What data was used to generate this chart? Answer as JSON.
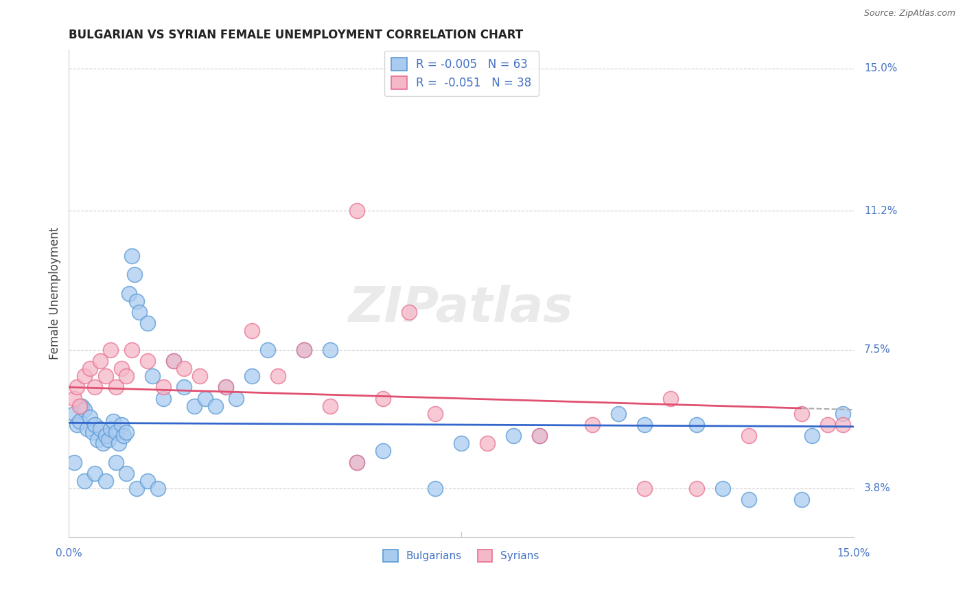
{
  "title": "BULGARIAN VS SYRIAN FEMALE UNEMPLOYMENT CORRELATION CHART",
  "source": "Source: ZipAtlas.com",
  "ylabel": "Female Unemployment",
  "yticks": [
    3.8,
    7.5,
    11.2,
    15.0
  ],
  "ytick_labels": [
    "3.8%",
    "7.5%",
    "11.2%",
    "15.0%"
  ],
  "xlim": [
    0,
    15
  ],
  "ylim": [
    2.5,
    15.5
  ],
  "watermark_text": "ZIPatlas",
  "legend_blue_r": "-0.005",
  "legend_blue_n": "63",
  "legend_pink_r": "-0.051",
  "legend_pink_n": "38",
  "blue_fill": "#AACBF0",
  "pink_fill": "#F5B8C8",
  "blue_edge": "#5A9AD5",
  "pink_edge": "#E87090",
  "blue_line": "#3366CC",
  "pink_line": "#E05070",
  "dashed_line": "#AAAAAA",
  "title_color": "#222222",
  "axis_label_color": "#4472C4",
  "grid_color": "#CCCCCC",
  "bulgarians_x": [
    0.1,
    0.15,
    0.2,
    0.25,
    0.3,
    0.35,
    0.4,
    0.45,
    0.5,
    0.55,
    0.6,
    0.65,
    0.7,
    0.75,
    0.8,
    0.85,
    0.9,
    0.95,
    1.0,
    1.05,
    1.1,
    1.15,
    1.2,
    1.25,
    1.3,
    1.35,
    1.5,
    1.6,
    1.8,
    2.0,
    2.2,
    2.4,
    2.6,
    2.8,
    3.0,
    3.2,
    3.5,
    3.8,
    4.5,
    5.0,
    5.5,
    6.0,
    7.0,
    7.5,
    8.5,
    9.0,
    10.5,
    11.0,
    12.0,
    12.5,
    13.0,
    14.0,
    14.2,
    14.8,
    0.1,
    0.3,
    0.5,
    0.7,
    0.9,
    1.1,
    1.3,
    1.5,
    1.7
  ],
  "bulgarians_y": [
    5.8,
    5.5,
    5.6,
    6.0,
    5.9,
    5.4,
    5.7,
    5.3,
    5.5,
    5.1,
    5.4,
    5.0,
    5.2,
    5.1,
    5.4,
    5.6,
    5.3,
    5.0,
    5.5,
    5.2,
    5.3,
    9.0,
    10.0,
    9.5,
    8.8,
    8.5,
    8.2,
    6.8,
    6.2,
    7.2,
    6.5,
    6.0,
    6.2,
    6.0,
    6.5,
    6.2,
    6.8,
    7.5,
    7.5,
    7.5,
    4.5,
    4.8,
    3.8,
    5.0,
    5.2,
    5.2,
    5.8,
    5.5,
    5.5,
    3.8,
    3.5,
    3.5,
    5.2,
    5.8,
    4.5,
    4.0,
    4.2,
    4.0,
    4.5,
    4.2,
    3.8,
    4.0,
    3.8
  ],
  "syrians_x": [
    0.1,
    0.15,
    0.2,
    0.3,
    0.4,
    0.5,
    0.6,
    0.7,
    0.8,
    0.9,
    1.0,
    1.1,
    1.2,
    1.5,
    1.8,
    2.0,
    2.2,
    2.5,
    3.0,
    3.5,
    4.0,
    4.5,
    5.0,
    5.5,
    6.0,
    7.0,
    8.0,
    9.0,
    10.0,
    11.0,
    12.0,
    13.0,
    14.0,
    14.5,
    14.8,
    5.5,
    6.5,
    11.5
  ],
  "syrians_y": [
    6.2,
    6.5,
    6.0,
    6.8,
    7.0,
    6.5,
    7.2,
    6.8,
    7.5,
    6.5,
    7.0,
    6.8,
    7.5,
    7.2,
    6.5,
    7.2,
    7.0,
    6.8,
    6.5,
    8.0,
    6.8,
    7.5,
    6.0,
    4.5,
    6.2,
    5.8,
    5.0,
    5.2,
    5.5,
    3.8,
    3.8,
    5.2,
    5.8,
    5.5,
    5.5,
    11.2,
    8.5,
    6.2
  ],
  "trend_blue_start_y": 5.55,
  "trend_blue_end_y": 5.45,
  "trend_pink_start_y": 6.5,
  "trend_pink_end_y": 5.9,
  "trend_pink_solid_end_x": 14.0,
  "trend_pink_dash_end_x": 15.0
}
